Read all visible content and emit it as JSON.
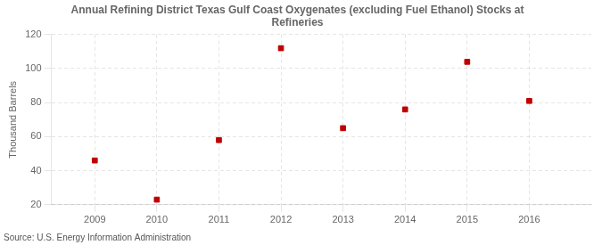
{
  "chart_data": {
    "type": "scatter",
    "title": "Annual Refining District Texas Gulf Coast Oxygenates (excluding Fuel Ethanol) Stocks at\nRefineries",
    "x": [
      2009,
      2010,
      2011,
      2012,
      2013,
      2014,
      2015,
      2016
    ],
    "values": [
      46,
      23,
      58,
      112,
      65,
      76,
      104,
      81
    ],
    "ylabel": "Thousand Barrels",
    "annotation": "Source: U.S. Energy Information Administration",
    "xlim": [
      2008.3,
      2017.0
    ],
    "xticks": [
      2009,
      2010,
      2011,
      2012,
      2013,
      2014,
      2015,
      2016
    ],
    "ylim": [
      20,
      120
    ],
    "yticks": [
      20,
      40,
      60,
      80,
      100,
      120
    ],
    "color": "#c00000",
    "marker": "square",
    "grid": true
  }
}
